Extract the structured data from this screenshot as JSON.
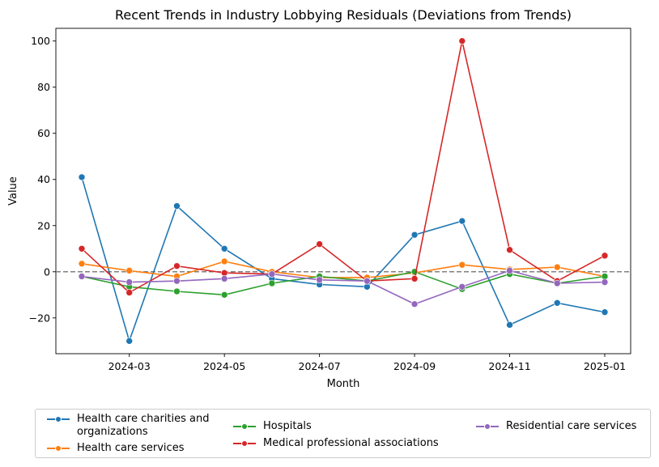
{
  "chart_data": {
    "type": "line",
    "title": "Recent Trends in Industry Lobbying Residuals (Deviations from Trends)",
    "xlabel": "Month",
    "ylabel": "Value",
    "x": [
      "2024-02",
      "2024-03",
      "2024-04",
      "2024-05",
      "2024-06",
      "2024-07",
      "2024-08",
      "2024-09",
      "2024-10",
      "2024-11",
      "2024-12",
      "2025-01"
    ],
    "x_ticks": [
      "2024-03",
      "2024-05",
      "2024-07",
      "2024-09",
      "2024-11",
      "2025-01"
    ],
    "y_ticks": [
      -20,
      0,
      20,
      40,
      60,
      80,
      100
    ],
    "ylim": [
      -35.5,
      105.5
    ],
    "reference_line": {
      "y": 0,
      "style": "dashed",
      "color": "#808080"
    },
    "grid": false,
    "legend_position": "bottom",
    "series": [
      {
        "name": "Health care charities and\norganizations",
        "color": "#1f77b4",
        "values": [
          41,
          -30,
          28.5,
          10,
          -3,
          -5.5,
          -6.5,
          16,
          22,
          -23,
          -13.5,
          -17.5
        ]
      },
      {
        "name": "Health care services",
        "color": "#ff7f0e",
        "values": [
          3.5,
          0.5,
          -2,
          4.5,
          0,
          -2.5,
          -2.5,
          -0.5,
          3,
          1,
          2,
          -2
        ]
      },
      {
        "name": "Hospitals",
        "color": "#2ca02c",
        "values": [
          -2,
          -6.5,
          -8.5,
          -10,
          -5,
          -2,
          -4,
          0,
          -7.5,
          -1,
          -5,
          -2
        ]
      },
      {
        "name": "Medical professional associations",
        "color": "#d62728",
        "values": [
          10,
          -9,
          2.5,
          -0.5,
          -1,
          12,
          -4,
          -3,
          100,
          9.5,
          -4,
          7
        ]
      },
      {
        "name": "Residential care services",
        "color": "#9467bd",
        "values": [
          -2,
          -4.5,
          -4,
          -3,
          -1,
          -3.5,
          -4,
          -14,
          -6.5,
          0.5,
          -5,
          -4.5
        ]
      }
    ]
  }
}
